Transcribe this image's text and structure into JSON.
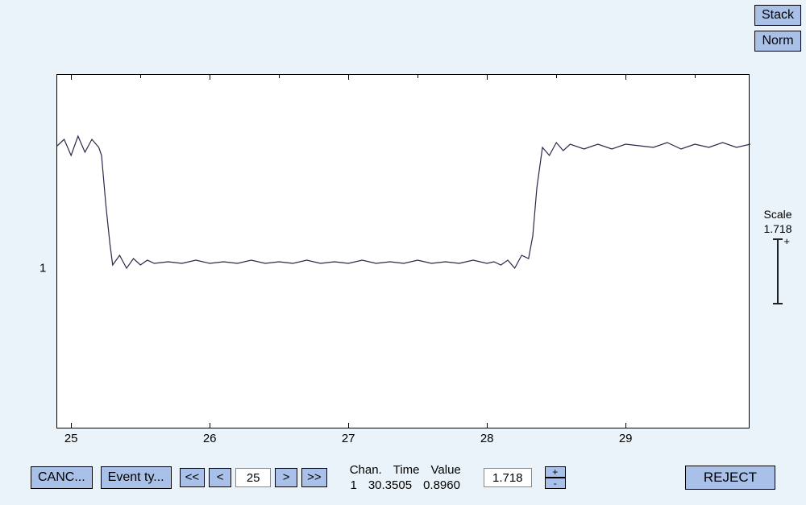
{
  "top": {
    "stack": "Stack",
    "norm": "Norm"
  },
  "buttons": {
    "cancel": "CANC...",
    "eventtype": "Event ty...",
    "first": "<<",
    "prev": "<",
    "next": ">",
    "last": ">>",
    "plus": "+",
    "minus": "-",
    "reject": "REJECT"
  },
  "nav": {
    "page": "25"
  },
  "info": {
    "h_chan": "Chan.",
    "h_time": "Time",
    "h_value": "Value",
    "chan": "1",
    "time": "30.3505",
    "value": "0.8960"
  },
  "scale": {
    "label": "Scale",
    "value": "1.718",
    "plus": "+",
    "input": "1.718"
  },
  "chart": {
    "background": "#ffffff",
    "page_background": "#eaf3f9",
    "button_bg": "#a9c1e8",
    "line_color": "#28284a",
    "line_width": 1.2,
    "xlim": [
      24.9,
      29.9
    ],
    "ylim": [
      0,
      2.2
    ],
    "y_tick": {
      "pos": 1,
      "label": "1"
    },
    "x_ticks": [
      {
        "pos": 25,
        "label": "25"
      },
      {
        "pos": 26,
        "label": "26"
      },
      {
        "pos": 27,
        "label": "27"
      },
      {
        "pos": 28,
        "label": "28"
      },
      {
        "pos": 29,
        "label": "29"
      }
    ],
    "x_minor_ticks": [
      25.5,
      26.5,
      27.5,
      28.5,
      29.5
    ],
    "series": [
      [
        24.9,
        1.76
      ],
      [
        24.95,
        1.8
      ],
      [
        25.0,
        1.7
      ],
      [
        25.05,
        1.82
      ],
      [
        25.1,
        1.72
      ],
      [
        25.15,
        1.8
      ],
      [
        25.2,
        1.75
      ],
      [
        25.22,
        1.7
      ],
      [
        25.25,
        1.4
      ],
      [
        25.28,
        1.15
      ],
      [
        25.3,
        1.02
      ],
      [
        25.35,
        1.08
      ],
      [
        25.4,
        1.0
      ],
      [
        25.45,
        1.06
      ],
      [
        25.5,
        1.02
      ],
      [
        25.55,
        1.05
      ],
      [
        25.6,
        1.03
      ],
      [
        25.7,
        1.04
      ],
      [
        25.8,
        1.03
      ],
      [
        25.9,
        1.05
      ],
      [
        26.0,
        1.03
      ],
      [
        26.1,
        1.04
      ],
      [
        26.2,
        1.03
      ],
      [
        26.3,
        1.05
      ],
      [
        26.4,
        1.03
      ],
      [
        26.5,
        1.04
      ],
      [
        26.6,
        1.03
      ],
      [
        26.7,
        1.05
      ],
      [
        26.8,
        1.03
      ],
      [
        26.9,
        1.04
      ],
      [
        27.0,
        1.03
      ],
      [
        27.1,
        1.05
      ],
      [
        27.2,
        1.03
      ],
      [
        27.3,
        1.04
      ],
      [
        27.4,
        1.03
      ],
      [
        27.5,
        1.05
      ],
      [
        27.6,
        1.03
      ],
      [
        27.7,
        1.04
      ],
      [
        27.8,
        1.03
      ],
      [
        27.9,
        1.05
      ],
      [
        28.0,
        1.03
      ],
      [
        28.05,
        1.04
      ],
      [
        28.1,
        1.02
      ],
      [
        28.15,
        1.05
      ],
      [
        28.2,
        1.0
      ],
      [
        28.25,
        1.08
      ],
      [
        28.3,
        1.06
      ],
      [
        28.33,
        1.2
      ],
      [
        28.36,
        1.5
      ],
      [
        28.4,
        1.75
      ],
      [
        28.45,
        1.7
      ],
      [
        28.5,
        1.78
      ],
      [
        28.55,
        1.73
      ],
      [
        28.6,
        1.77
      ],
      [
        28.7,
        1.74
      ],
      [
        28.8,
        1.77
      ],
      [
        28.9,
        1.74
      ],
      [
        29.0,
        1.77
      ],
      [
        29.1,
        1.76
      ],
      [
        29.2,
        1.75
      ],
      [
        29.3,
        1.78
      ],
      [
        29.4,
        1.74
      ],
      [
        29.5,
        1.77
      ],
      [
        29.6,
        1.75
      ],
      [
        29.7,
        1.78
      ],
      [
        29.8,
        1.75
      ],
      [
        29.9,
        1.77
      ]
    ]
  }
}
